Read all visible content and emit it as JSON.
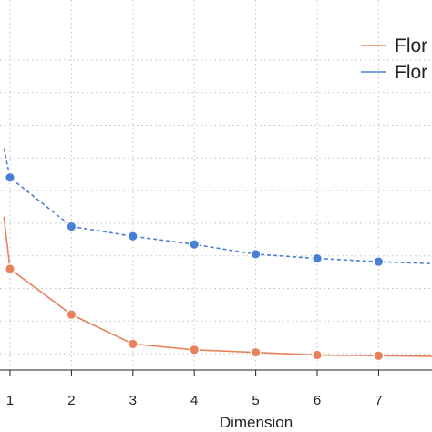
{
  "chart_data": {
    "type": "line",
    "xlabel": "Dimension",
    "ylabel": "",
    "title": "",
    "x_ticks": [
      1,
      2,
      3,
      4,
      5,
      6,
      7
    ],
    "xlim": [
      0.8,
      7.9
    ],
    "ylim": [
      0,
      1
    ],
    "grid": true,
    "legend_position": "top-right",
    "series": [
      {
        "name": "Flor",
        "color": "#e8825a",
        "line_style": "solid",
        "x": [
          0.9,
          1,
          2,
          3,
          4,
          5,
          6,
          7,
          7.9
        ],
        "y": [
          0.47,
          0.31,
          0.17,
          0.08,
          0.062,
          0.054,
          0.046,
          0.044,
          0.042
        ]
      },
      {
        "name": "Flor",
        "color": "#4a7fd6",
        "line_style": "dashed",
        "x": [
          0.9,
          1,
          2,
          3,
          4,
          5,
          6,
          7,
          7.9
        ],
        "y": [
          0.68,
          0.59,
          0.44,
          0.41,
          0.385,
          0.355,
          0.342,
          0.332,
          0.326
        ]
      }
    ]
  }
}
